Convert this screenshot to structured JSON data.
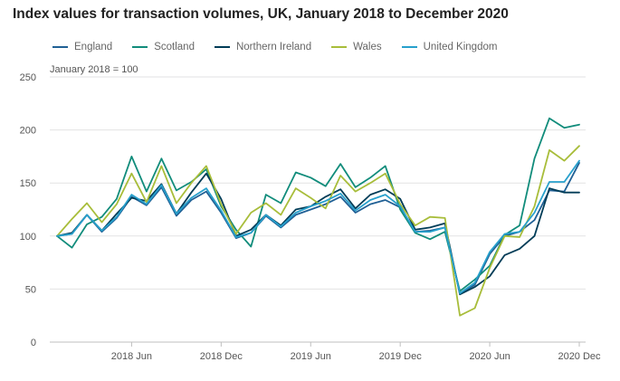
{
  "colors": {
    "england": "#206095",
    "scotland": "#118c7b",
    "northern_ireland": "#003c57",
    "wales": "#a8bd3a",
    "united_kingdom": "#27a0cc",
    "grid": "#e2e2e3",
    "axis": "#bfbfbf",
    "text": "#555555"
  },
  "chart_data": {
    "type": "line",
    "title": "Index values for transaction volumes, UK, January 2018 to December 2020",
    "subtitle": "January 2018 = 100",
    "xlabel": "",
    "ylabel": "",
    "ylim": [
      0,
      250
    ],
    "yticks": [
      0,
      50,
      100,
      150,
      200,
      250
    ],
    "grid": "horizontal",
    "legend_position": "top",
    "x": [
      "2018 Jan",
      "2018 Feb",
      "2018 Mar",
      "2018 Apr",
      "2018 May",
      "2018 Jun",
      "2018 Jul",
      "2018 Aug",
      "2018 Sep",
      "2018 Oct",
      "2018 Nov",
      "2018 Dec",
      "2019 Jan",
      "2019 Feb",
      "2019 Mar",
      "2019 Apr",
      "2019 May",
      "2019 Jun",
      "2019 Jul",
      "2019 Aug",
      "2019 Sep",
      "2019 Oct",
      "2019 Nov",
      "2019 Dec",
      "2020 Jan",
      "2020 Feb",
      "2020 Mar",
      "2020 Apr",
      "2020 May",
      "2020 Jun",
      "2020 Jul",
      "2020 Aug",
      "2020 Sep",
      "2020 Oct",
      "2020 Nov",
      "2020 Dec"
    ],
    "xtick_labels": [
      {
        "index": 5,
        "label": "2018 Jun"
      },
      {
        "index": 11,
        "label": "2018 Dec"
      },
      {
        "index": 17,
        "label": "2019 Jun"
      },
      {
        "index": 23,
        "label": "2019 Dec"
      },
      {
        "index": 29,
        "label": "2020 Jun"
      },
      {
        "index": 35,
        "label": "2020 Dec"
      }
    ],
    "series": [
      {
        "name": "England",
        "key": "england",
        "values": [
          100,
          102,
          120,
          104,
          117,
          137,
          129,
          146,
          119,
          134,
          142,
          122,
          98,
          103,
          119,
          108,
          120,
          125,
          130,
          137,
          122,
          130,
          134,
          127,
          104,
          105,
          108,
          46,
          54,
          83,
          100,
          104,
          115,
          143,
          142,
          169
        ]
      },
      {
        "name": "Scotland",
        "key": "scotland",
        "values": [
          100,
          89,
          111,
          118,
          135,
          175,
          142,
          173,
          143,
          151,
          163,
          128,
          106,
          90,
          139,
          131,
          160,
          155,
          147,
          168,
          146,
          155,
          166,
          125,
          103,
          97,
          104,
          48,
          59,
          72,
          101,
          110,
          173,
          211,
          202,
          205
        ]
      },
      {
        "name": "Northern Ireland",
        "key": "northern_ireland",
        "values": [
          100,
          103,
          120,
          105,
          121,
          136,
          133,
          149,
          121,
          141,
          159,
          135,
          100,
          106,
          120,
          110,
          125,
          128,
          137,
          144,
          126,
          139,
          144,
          135,
          106,
          108,
          112,
          45,
          52,
          62,
          82,
          88,
          100,
          145,
          141,
          141
        ]
      },
      {
        "name": "Wales",
        "key": "wales",
        "values": [
          100,
          116,
          131,
          113,
          130,
          159,
          132,
          166,
          131,
          150,
          166,
          130,
          102,
          122,
          131,
          120,
          145,
          136,
          126,
          157,
          142,
          150,
          159,
          130,
          110,
          118,
          117,
          25,
          32,
          70,
          100,
          99,
          128,
          181,
          171,
          185
        ]
      },
      {
        "name": "United Kingdom",
        "key": "united_kingdom",
        "values": [
          100,
          102,
          120,
          105,
          118,
          139,
          130,
          148,
          121,
          136,
          145,
          124,
          99,
          103,
          120,
          109,
          122,
          128,
          133,
          140,
          124,
          134,
          139,
          128,
          104,
          104,
          108,
          46,
          56,
          85,
          102,
          104,
          122,
          151,
          151,
          171
        ]
      }
    ]
  }
}
